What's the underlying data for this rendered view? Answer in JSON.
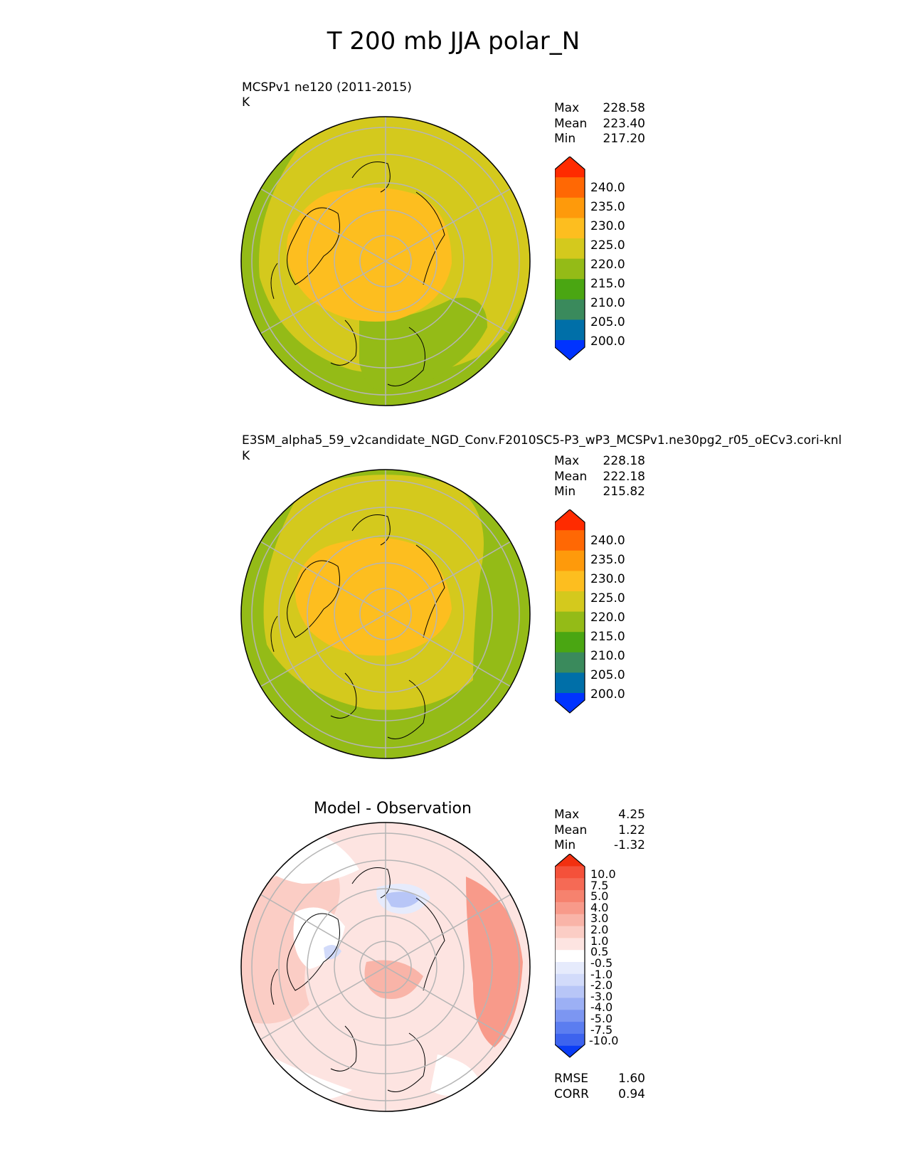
{
  "title": "T 200 mb JJA polar_N",
  "colors": {
    "abs_levels": [
      "#0033ff",
      "#006fa8",
      "#3a8a5c",
      "#4aa612",
      "#94bb17",
      "#d4c91d",
      "#fdbe1f",
      "#fe9a0b",
      "#ff6804",
      "#ff2b00"
    ],
    "diff_levels": [
      "#0a3cf5",
      "#3d63ee",
      "#5b7df0",
      "#7c96f2",
      "#9cb0f5",
      "#b8c6f7",
      "#d2dbfa",
      "#e6ebfc",
      "#ffffff",
      "#fde4e1",
      "#fbcdc5",
      "#f9b4a8",
      "#f89a8a",
      "#f6826e",
      "#f56a55",
      "#f4513a",
      "#f23010"
    ]
  },
  "panels": [
    {
      "title": "MCSPv1 ne120 (2011-2015)",
      "units": "K",
      "stats": [
        {
          "label": "Max",
          "value": "228.58"
        },
        {
          "label": "Mean",
          "value": "223.40"
        },
        {
          "label": "Min",
          "value": "217.20"
        }
      ],
      "colorbar_ticks": [
        "200.0",
        "205.0",
        "210.0",
        "215.0",
        "220.0",
        "225.0",
        "230.0",
        "235.0",
        "240.0"
      ]
    },
    {
      "title": "E3SM_alpha5_59_v2candidate_NGD_Conv.F2010SC5-P3_wP3_MCSPv1.ne30pg2_r05_oECv3.cori-knl",
      "units": "K",
      "stats": [
        {
          "label": "Max",
          "value": "228.18"
        },
        {
          "label": "Mean",
          "value": "222.18"
        },
        {
          "label": "Min",
          "value": "215.82"
        }
      ],
      "colorbar_ticks": [
        "200.0",
        "205.0",
        "210.0",
        "215.0",
        "220.0",
        "225.0",
        "230.0",
        "235.0",
        "240.0"
      ]
    },
    {
      "title": "Model - Observation",
      "stats": [
        {
          "label": "Max",
          "value": "4.25"
        },
        {
          "label": "Mean",
          "value": "1.22"
        },
        {
          "label": "Min",
          "value": "-1.32"
        }
      ],
      "colorbar_ticks": [
        "-10.0",
        "-7.5",
        "-5.0",
        "-4.0",
        "-3.0",
        "-2.0",
        "-1.0",
        "-0.5",
        "0.5",
        "1.0",
        "2.0",
        "3.0",
        "4.0",
        "5.0",
        "7.5",
        "10.0"
      ],
      "metrics": [
        {
          "label": "RMSE",
          "value": "1.60"
        },
        {
          "label": "CORR",
          "value": "0.94"
        }
      ]
    }
  ],
  "chart_data": [
    {
      "type": "heatmap",
      "projection": "north polar stereographic",
      "variable": "T 200 mb JJA",
      "title": "MCSPv1 ne120 (2011-2015)",
      "units": "K",
      "levels": [
        200,
        205,
        210,
        215,
        220,
        225,
        230,
        235,
        240
      ],
      "max": 228.58,
      "mean": 223.4,
      "min": 217.2
    },
    {
      "type": "heatmap",
      "projection": "north polar stereographic",
      "variable": "T 200 mb JJA",
      "title": "E3SM_alpha5_59_v2candidate_NGD_Conv.F2010SC5-P3_wP3_MCSPv1.ne30pg2_r05_oECv3.cori-knl",
      "units": "K",
      "levels": [
        200,
        205,
        210,
        215,
        220,
        225,
        230,
        235,
        240
      ],
      "max": 228.18,
      "mean": 222.18,
      "min": 215.82
    },
    {
      "type": "heatmap",
      "projection": "north polar stereographic",
      "title": "Model - Observation",
      "levels": [
        -10,
        -7.5,
        -5,
        -4,
        -3,
        -2,
        -1,
        -0.5,
        0.5,
        1,
        2,
        3,
        4,
        5,
        7.5,
        10
      ],
      "max": 4.25,
      "mean": 1.22,
      "min": -1.32,
      "rmse": 1.6,
      "corr": 0.94
    }
  ]
}
